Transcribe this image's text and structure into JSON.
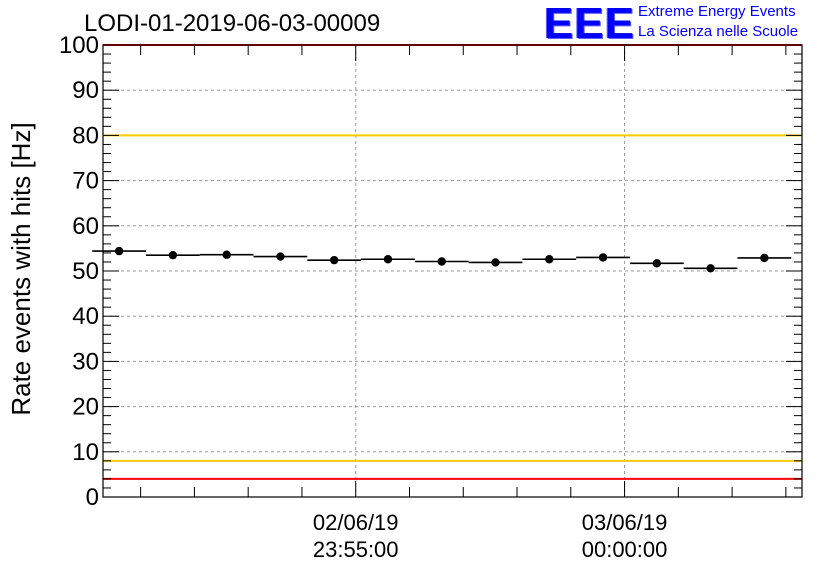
{
  "title": "LODI-01-2019-06-03-00009",
  "logo": {
    "mark": "EEE",
    "line1": "Extreme Energy Events",
    "line2": "La Scienza nelle Scuole"
  },
  "chart_data": {
    "type": "scatter",
    "ylabel": "Rate events with hits [Hz]",
    "xlabel": "",
    "ylim": [
      0,
      100
    ],
    "yticks": [
      "0",
      "10",
      "20",
      "30",
      "40",
      "50",
      "60",
      "70",
      "80",
      "90",
      "100"
    ],
    "xlim": [
      -47,
      83
    ],
    "x_major_ticks": [
      {
        "x": 0,
        "label_date": "02/06/19",
        "label_time": "23:55:00"
      },
      {
        "x": 50,
        "label_date": "03/06/19",
        "label_time": "00:00:00"
      }
    ],
    "grid": true,
    "reference_lines": [
      {
        "y": 100,
        "color": "#ff0000"
      },
      {
        "y": 80,
        "color": "#ffcc00"
      },
      {
        "y": 8,
        "color": "#ffcc00"
      },
      {
        "y": 4,
        "color": "#ff0000"
      }
    ],
    "series": [
      {
        "points": [
          {
            "x": -44,
            "y": 54.4
          },
          {
            "x": -34,
            "y": 53.5
          },
          {
            "x": -24,
            "y": 53.6
          },
          {
            "x": -14,
            "y": 53.2
          },
          {
            "x": -4,
            "y": 52.4
          },
          {
            "x": 6,
            "y": 52.6
          },
          {
            "x": 16,
            "y": 52.1
          },
          {
            "x": 26,
            "y": 51.9
          },
          {
            "x": 36,
            "y": 52.6
          },
          {
            "x": 46,
            "y": 53.0
          },
          {
            "x": 56,
            "y": 51.7
          },
          {
            "x": 66,
            "y": 50.6
          },
          {
            "x": 76,
            "y": 52.9
          }
        ],
        "bin_halfwidth": 5,
        "color": "#000000"
      }
    ]
  }
}
